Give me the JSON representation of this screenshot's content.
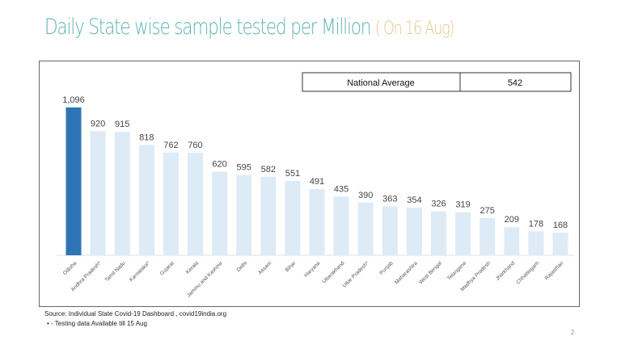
{
  "slide": {
    "title": "Daily State wise sample tested per Million",
    "subtitle": "( On 16 Aug)",
    "source": "Source: Individual State Covid-19 Dashboard , covid19india.org",
    "note": "•   - Testing data Available till 15 Aug",
    "page_number": "2"
  },
  "national_average": {
    "label": "National Average",
    "value": "542"
  },
  "chart_data": {
    "type": "bar",
    "title": "Daily State wise sample tested per Million",
    "categories": [
      "Odisha",
      "Andhra Pradesh*",
      "Tamil Nadu",
      "Karnataka*",
      "Gujarat",
      "Kerala",
      "Jammu and Kashmir",
      "Delhi",
      "Assam",
      "Bihar",
      "Haryana",
      "Uttarakhand",
      "Uttar Pradesh*",
      "Punjab",
      "Maharashtra",
      "West Bengal",
      "Telangana",
      "Madhya Pradesh",
      "Jharkhand",
      "Chhattisgarh",
      "Rajasthan"
    ],
    "values": [
      1096,
      920,
      915,
      818,
      762,
      760,
      620,
      595,
      582,
      551,
      491,
      435,
      390,
      363,
      354,
      326,
      319,
      275,
      209,
      178,
      168
    ],
    "data_labels": [
      "1,096",
      "920",
      "915",
      "818",
      "762",
      "760",
      "620",
      "595",
      "582",
      "551",
      "491",
      "435",
      "390",
      "363",
      "354",
      "326",
      "319",
      "275",
      "209",
      "178",
      "168"
    ],
    "highlight_color": "#2e75b6",
    "bar_color": "#ddebf7",
    "ylim": [
      0,
      1096
    ],
    "grid": false,
    "legend": "none"
  }
}
